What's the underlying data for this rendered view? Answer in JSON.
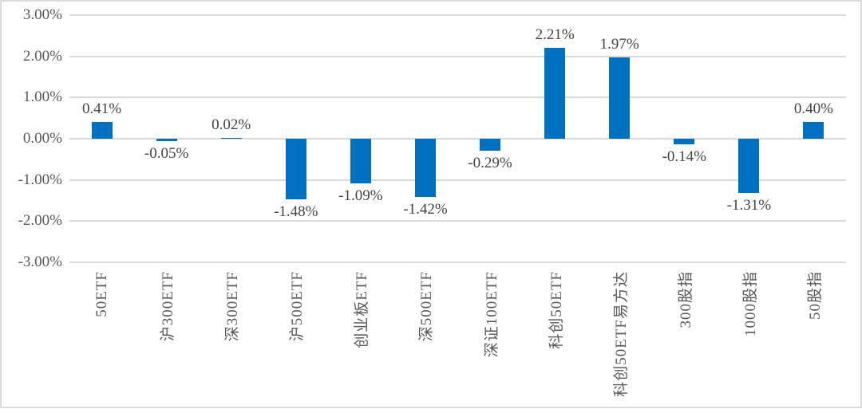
{
  "chart_data": {
    "type": "bar",
    "title": "",
    "xlabel": "",
    "ylabel": "",
    "categories": [
      "50ETF",
      "沪300ETF",
      "深300ETF",
      "沪500ETF",
      "创业板ETF",
      "深500ETF",
      "深证100ETF",
      "科创50ETF",
      "科创50ETF易方达",
      "300股指",
      "1000股指",
      "50股指"
    ],
    "values": [
      0.41,
      -0.05,
      0.02,
      -1.48,
      -1.09,
      -1.42,
      -0.29,
      2.21,
      1.97,
      -0.14,
      -1.31,
      0.4
    ],
    "value_labels": [
      "0.41%",
      "-0.05%",
      "0.02%",
      "-1.48%",
      "-1.09%",
      "-1.42%",
      "-0.29%",
      "2.21%",
      "1.97%",
      "-0.14%",
      "-1.31%",
      "0.40%"
    ],
    "unit": "%",
    "ylim": [
      -3,
      3
    ],
    "y_tick_step": 1,
    "y_ticks": [
      "3.00%",
      "2.00%",
      "1.00%",
      "0.00%",
      "-1.00%",
      "-2.00%",
      "-3.00%"
    ],
    "grid": true,
    "legend": false,
    "colors": {
      "bar": "#0070C0",
      "gridline": "#DADADA",
      "axis_text": "#595959",
      "value_text": "#444444",
      "frame_border": "#DCDCDC"
    }
  }
}
